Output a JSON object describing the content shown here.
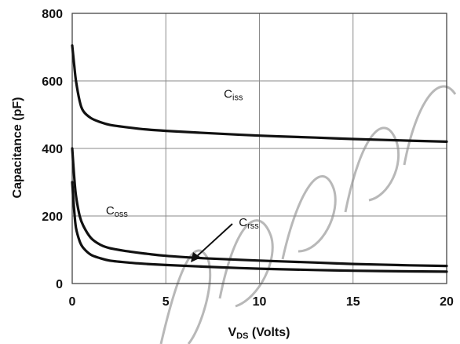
{
  "chart_data": {
    "type": "line",
    "xlabel_main": "V",
    "xlabel_sub": "DS",
    "xlabel_rest": " (Volts)",
    "ylabel": "Capacitance (pF)",
    "xlim": [
      0,
      20
    ],
    "ylim": [
      0,
      800
    ],
    "x_ticks": [
      "0",
      "5",
      "10",
      "15",
      "20"
    ],
    "y_ticks": [
      "0",
      "200",
      "400",
      "600",
      "800"
    ],
    "grid": true,
    "series": [
      {
        "name": "Ciss",
        "label_main": "C",
        "label_sub": "iss",
        "x": [
          0,
          0.1,
          0.2,
          0.4,
          0.6,
          1.0,
          1.5,
          2,
          3,
          4,
          5,
          7,
          10,
          13,
          15,
          18,
          20
        ],
        "y": [
          705,
          650,
          600,
          540,
          510,
          490,
          478,
          470,
          462,
          456,
          452,
          446,
          438,
          432,
          428,
          423,
          420
        ]
      },
      {
        "name": "Coss",
        "label_main": "C",
        "label_sub": "oss",
        "x": [
          0,
          0.1,
          0.2,
          0.4,
          0.6,
          1.0,
          1.5,
          2,
          3,
          4,
          5,
          7,
          10,
          13,
          15,
          18,
          20
        ],
        "y": [
          400,
          320,
          260,
          200,
          170,
          135,
          115,
          105,
          95,
          88,
          82,
          75,
          68,
          62,
          58,
          54,
          52
        ]
      },
      {
        "name": "Crss",
        "label_main": "C",
        "label_sub": "rss",
        "x": [
          0,
          0.1,
          0.2,
          0.4,
          0.6,
          1.0,
          1.5,
          2,
          3,
          4,
          5,
          7,
          10,
          13,
          15,
          18,
          20
        ],
        "y": [
          300,
          220,
          165,
          125,
          105,
          85,
          75,
          68,
          62,
          58,
          55,
          50,
          44,
          40,
          38,
          36,
          35
        ]
      }
    ]
  }
}
